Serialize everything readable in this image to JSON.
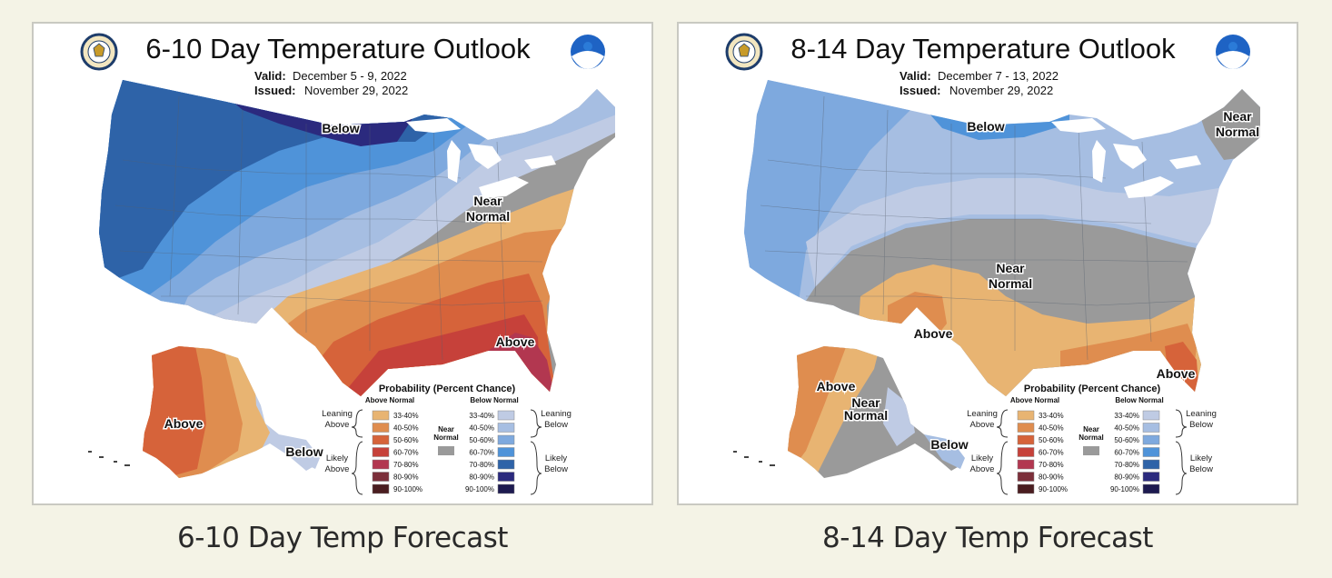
{
  "maps": [
    {
      "title": "6-10 Day Temperature Outlook",
      "valid_label": "Valid:",
      "valid_value": "December 5 - 9, 2022",
      "issued_label": "Issued:",
      "issued_value": "November 29, 2022",
      "region_labels": {
        "below_north": "Below",
        "near_normal_line1": "Near",
        "near_normal_line2": "Normal",
        "above_southeast": "Above",
        "alaska_above": "Above",
        "alaska_below": "Below"
      },
      "caption": "6-10 Day Temp Forecast"
    },
    {
      "title": "8-14 Day Temperature Outlook",
      "valid_label": "Valid:",
      "valid_value": "December 7 - 13, 2022",
      "issued_label": "Issued:",
      "issued_value": "November 29, 2022",
      "region_labels": {
        "below_north": "Below",
        "near_normal_ne_line1": "Near",
        "near_normal_ne_line2": "Normal",
        "near_normal_mid_line1": "Near",
        "near_normal_mid_line2": "Normal",
        "above_texas": "Above",
        "above_florida": "Above",
        "alaska_above": "Above",
        "alaska_near_line1": "Near",
        "alaska_near_line2": "Normal",
        "alaska_below": "Below"
      },
      "caption": "8-14 Day Temp Forecast"
    }
  ],
  "legend": {
    "title": "Probability (Percent Chance)",
    "above_header": "Above Normal",
    "below_header": "Below Normal",
    "near_line1": "Near",
    "near_line2": "Normal",
    "leaning_above_line1": "Leaning",
    "leaning_above_line2": "Above",
    "likely_above_line1": "Likely",
    "likely_above_line2": "Above",
    "leaning_below_line1": "Leaning",
    "leaning_below_line2": "Below",
    "likely_below_line1": "Likely",
    "likely_below_line2": "Below",
    "ranges": [
      "33-40%",
      "40-50%",
      "50-60%",
      "60-70%",
      "70-80%",
      "80-90%",
      "90-100%"
    ],
    "above_colors": [
      "#e8b472",
      "#df8d4f",
      "#d6633a",
      "#c6413a",
      "#b23750",
      "#7c2f3a",
      "#4a1d20"
    ],
    "below_colors": [
      "#bfcbe4",
      "#a6bee2",
      "#7ea9de",
      "#4f93d9",
      "#2e63a8",
      "#2b2a7e",
      "#1d1a50"
    ],
    "near_color": "#9a9a9a"
  }
}
